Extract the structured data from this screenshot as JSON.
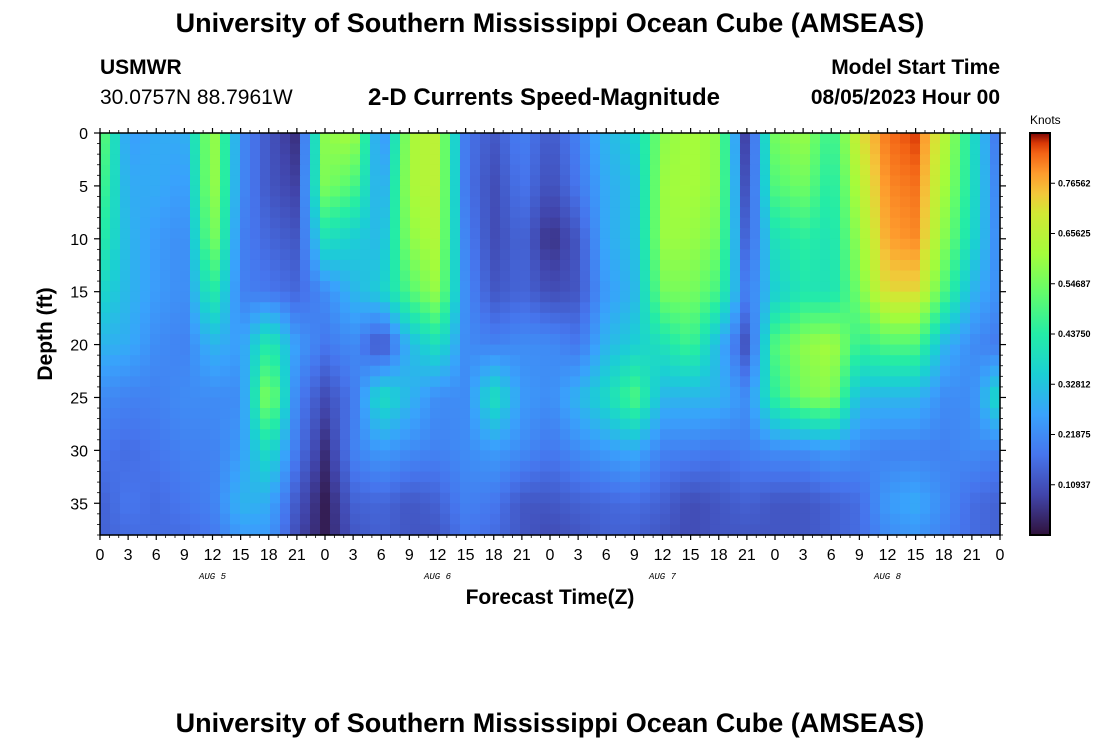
{
  "header": {
    "title": "University of Southern Mississippi Ocean Cube (AMSEAS)",
    "station": "USMWR",
    "coords": "30.0757N  88.7961W",
    "subtitle": "2-D Currents Speed-Magnitude",
    "model_start_label": "Model Start Time",
    "model_start_value": "08/05/2023 Hour 00"
  },
  "footer": {
    "title": "University of Southern Mississippi Ocean Cube (AMSEAS)"
  },
  "chart_data": {
    "type": "heatmap",
    "title": "2-D Currents Speed-Magnitude",
    "xlabel": "Forecast Time(Z)",
    "ylabel": "Depth (ft)",
    "x_hours_range": [
      0,
      96
    ],
    "y_depth_range": [
      0,
      38
    ],
    "x_tick_labels": [
      "0",
      "3",
      "6",
      "9",
      "12",
      "15",
      "18",
      "21",
      "0",
      "3",
      "6",
      "9",
      "12",
      "15",
      "18",
      "21",
      "0",
      "3",
      "6",
      "9",
      "12",
      "15",
      "18",
      "21",
      "0",
      "3",
      "6",
      "9",
      "12",
      "15",
      "18",
      "21",
      "0"
    ],
    "y_ticks": [
      0,
      5,
      10,
      15,
      20,
      25,
      30,
      35
    ],
    "day_labels": [
      {
        "text": "AUG 5",
        "hour": 12
      },
      {
        "text": "AUG 6",
        "hour": 36
      },
      {
        "text": "AUG 7",
        "hour": 60
      },
      {
        "text": "AUG 8",
        "hour": 84
      }
    ],
    "colorbar": {
      "title": "Knots",
      "min": 0,
      "max": 0.875,
      "tick_values": [
        0.10937,
        0.21875,
        0.32812,
        0.4375,
        0.54687,
        0.65625,
        0.76562
      ],
      "tick_labels": [
        "0.10937",
        "0.21875",
        "0.32812",
        "0.43750",
        "0.54687",
        "0.65625",
        "0.76562"
      ]
    },
    "speed_knots_grid": {
      "hours": [
        0,
        3,
        6,
        9,
        12,
        15,
        18,
        21,
        24,
        27,
        30,
        33,
        36,
        39,
        42,
        45,
        48,
        51,
        54,
        57,
        60,
        63,
        66,
        69,
        72,
        75,
        78,
        81,
        84,
        87,
        90,
        93,
        96
      ],
      "depths_ft": [
        0,
        5,
        10,
        15,
        20,
        25,
        30,
        35,
        38
      ],
      "rows": [
        [
          0.55,
          0.25,
          0.28,
          0.28,
          0.62,
          0.22,
          0.12,
          0.05,
          0.58,
          0.62,
          0.2,
          0.62,
          0.66,
          0.18,
          0.12,
          0.2,
          0.12,
          0.2,
          0.3,
          0.35,
          0.58,
          0.62,
          0.58,
          0.05,
          0.55,
          0.6,
          0.45,
          0.7,
          0.82,
          0.85,
          0.65,
          0.4,
          0.15
        ],
        [
          0.5,
          0.28,
          0.28,
          0.25,
          0.62,
          0.22,
          0.12,
          0.08,
          0.56,
          0.5,
          0.25,
          0.62,
          0.66,
          0.18,
          0.1,
          0.18,
          0.1,
          0.18,
          0.28,
          0.32,
          0.6,
          0.62,
          0.58,
          0.08,
          0.5,
          0.55,
          0.42,
          0.65,
          0.8,
          0.82,
          0.62,
          0.4,
          0.18
        ],
        [
          0.45,
          0.3,
          0.25,
          0.22,
          0.58,
          0.2,
          0.15,
          0.12,
          0.4,
          0.35,
          0.3,
          0.58,
          0.64,
          0.2,
          0.1,
          0.15,
          0.05,
          0.12,
          0.28,
          0.32,
          0.6,
          0.6,
          0.55,
          0.12,
          0.4,
          0.45,
          0.4,
          0.6,
          0.78,
          0.8,
          0.58,
          0.38,
          0.2
        ],
        [
          0.38,
          0.3,
          0.25,
          0.22,
          0.45,
          0.2,
          0.18,
          0.15,
          0.22,
          0.3,
          0.35,
          0.5,
          0.6,
          0.22,
          0.12,
          0.15,
          0.1,
          0.12,
          0.25,
          0.3,
          0.55,
          0.56,
          0.48,
          0.18,
          0.35,
          0.42,
          0.4,
          0.55,
          0.72,
          0.72,
          0.5,
          0.3,
          0.22
        ],
        [
          0.3,
          0.28,
          0.22,
          0.2,
          0.3,
          0.25,
          0.45,
          0.25,
          0.18,
          0.22,
          0.1,
          0.3,
          0.4,
          0.22,
          0.2,
          0.22,
          0.22,
          0.18,
          0.3,
          0.35,
          0.4,
          0.48,
          0.3,
          0.1,
          0.5,
          0.58,
          0.62,
          0.45,
          0.5,
          0.5,
          0.3,
          0.22,
          0.18
        ],
        [
          0.22,
          0.2,
          0.2,
          0.22,
          0.22,
          0.22,
          0.6,
          0.2,
          0.1,
          0.18,
          0.4,
          0.3,
          0.22,
          0.22,
          0.4,
          0.25,
          0.22,
          0.3,
          0.38,
          0.5,
          0.3,
          0.3,
          0.3,
          0.22,
          0.45,
          0.55,
          0.58,
          0.3,
          0.3,
          0.3,
          0.22,
          0.22,
          0.4
        ],
        [
          0.18,
          0.16,
          0.18,
          0.2,
          0.2,
          0.25,
          0.4,
          0.18,
          0.05,
          0.2,
          0.25,
          0.22,
          0.2,
          0.22,
          0.25,
          0.22,
          0.18,
          0.22,
          0.25,
          0.28,
          0.2,
          0.2,
          0.18,
          0.2,
          0.22,
          0.22,
          0.25,
          0.22,
          0.2,
          0.2,
          0.2,
          0.22,
          0.2
        ],
        [
          0.14,
          0.18,
          0.16,
          0.18,
          0.2,
          0.3,
          0.28,
          0.12,
          0.02,
          0.14,
          0.15,
          0.12,
          0.14,
          0.2,
          0.18,
          0.12,
          0.12,
          0.14,
          0.15,
          0.16,
          0.14,
          0.1,
          0.12,
          0.14,
          0.12,
          0.12,
          0.14,
          0.16,
          0.25,
          0.28,
          0.22,
          0.16,
          0.14
        ],
        [
          0.14,
          0.16,
          0.16,
          0.16,
          0.18,
          0.25,
          0.25,
          0.1,
          0.02,
          0.12,
          0.14,
          0.12,
          0.12,
          0.18,
          0.16,
          0.12,
          0.1,
          0.12,
          0.14,
          0.14,
          0.12,
          0.1,
          0.12,
          0.12,
          0.12,
          0.12,
          0.14,
          0.16,
          0.22,
          0.24,
          0.2,
          0.16,
          0.14
        ]
      ]
    }
  }
}
